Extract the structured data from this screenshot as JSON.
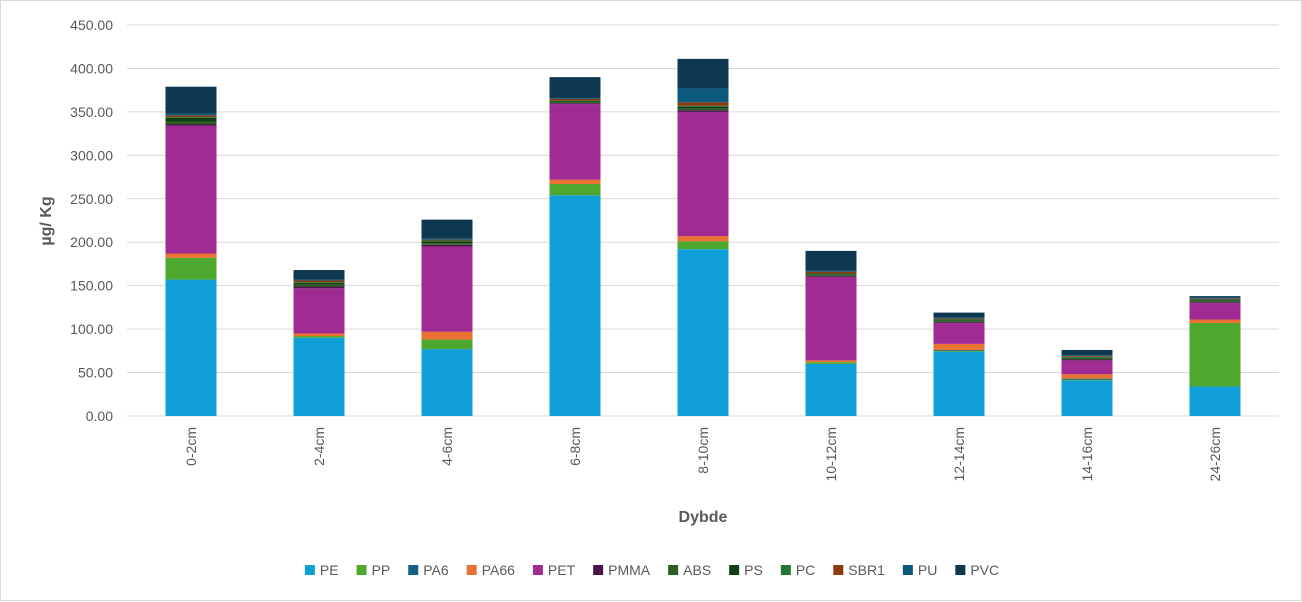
{
  "chart_data": {
    "type": "bar",
    "stacked": true,
    "title": "",
    "xlabel": "Dybde",
    "ylabel": "µg/ Kg",
    "ylim": [
      0,
      450
    ],
    "ytick_step": 50,
    "ytick_labels": [
      "0.00",
      "50.00",
      "100.00",
      "150.00",
      "200.00",
      "250.00",
      "300.00",
      "350.00",
      "400.00",
      "450.00"
    ],
    "grid": true,
    "legend_position": "bottom",
    "categories": [
      "0-2cm",
      "2-4cm",
      "4-6cm",
      "6-8cm",
      "8-10cm",
      "10-12cm",
      "12-14cm",
      "14-16cm",
      "24-26cm"
    ],
    "series": [
      {
        "name": "PE",
        "color": "#119fd8",
        "values": [
          157,
          90,
          77,
          254,
          192,
          60,
          74,
          41,
          34
        ]
      },
      {
        "name": "PP",
        "color": "#4ea72e",
        "values": [
          25,
          2,
          11,
          13,
          9,
          2,
          1,
          1,
          73
        ]
      },
      {
        "name": "PA6",
        "color": "#155f82",
        "values": [
          0,
          0,
          0,
          0,
          0,
          0,
          1,
          1,
          0
        ]
      },
      {
        "name": "PA66",
        "color": "#e97132",
        "values": [
          5,
          3,
          9,
          5,
          6,
          2,
          7,
          5,
          4
        ]
      },
      {
        "name": "PET",
        "color": "#a02b93",
        "values": [
          147,
          52,
          98,
          87,
          143,
          96,
          24,
          16,
          19
        ]
      },
      {
        "name": "PMMA",
        "color": "#4b1248",
        "values": [
          2,
          2,
          2,
          1,
          2,
          1,
          1,
          1,
          1
        ]
      },
      {
        "name": "ABS",
        "color": "#2e5e22",
        "values": [
          3,
          2,
          2,
          1,
          2,
          1,
          1,
          1,
          1
        ]
      },
      {
        "name": "PS",
        "color": "#0f3d16",
        "values": [
          4,
          2,
          2,
          1,
          2,
          1,
          1,
          1,
          1
        ]
      },
      {
        "name": "PC",
        "color": "#217535",
        "values": [
          1,
          1,
          1,
          1,
          1,
          1,
          1,
          1,
          1
        ]
      },
      {
        "name": "SBR1",
        "color": "#8b3a0e",
        "values": [
          2,
          2,
          1,
          2,
          4,
          2,
          1,
          1,
          1
        ]
      },
      {
        "name": "PU",
        "color": "#0b5a7e",
        "values": [
          2,
          1,
          1,
          1,
          16,
          1,
          1,
          1,
          1
        ]
      },
      {
        "name": "PVC",
        "color": "#0e3850",
        "values": [
          31,
          11,
          22,
          24,
          34,
          23,
          6,
          6,
          2
        ]
      }
    ]
  }
}
